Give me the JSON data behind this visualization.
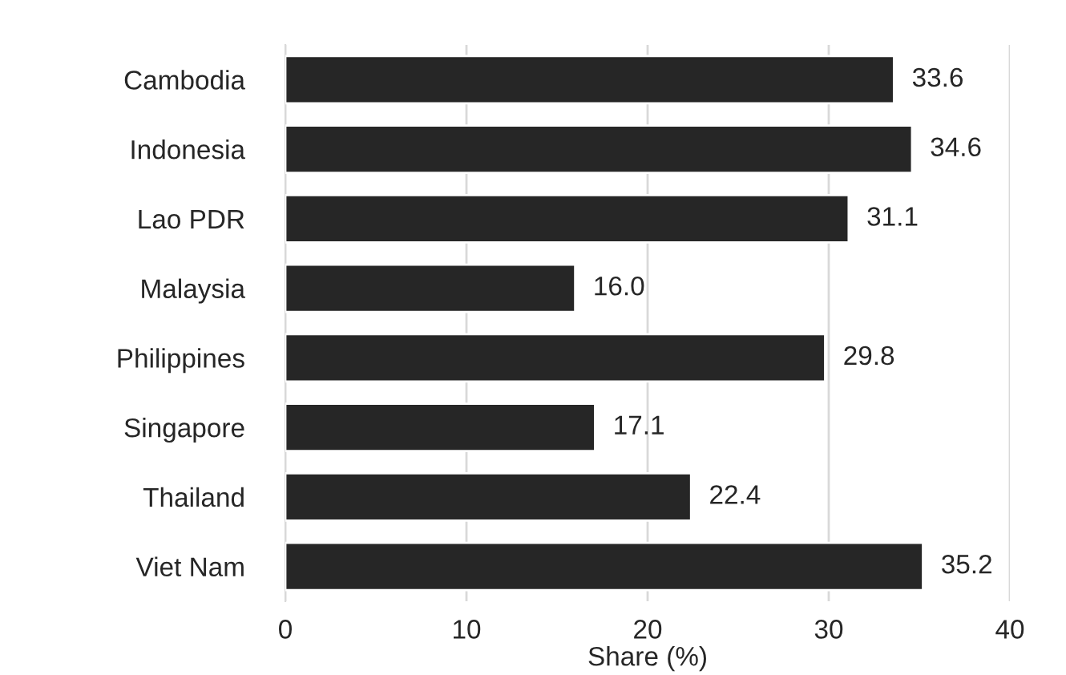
{
  "chart_data": {
    "type": "bar",
    "orientation": "horizontal",
    "xlabel": "Share (%)",
    "categories": [
      "Cambodia",
      "Indonesia",
      "Lao PDR",
      "Malaysia",
      "Philippines",
      "Singapore",
      "Thailand",
      "Viet Nam"
    ],
    "values": [
      33.6,
      34.6,
      31.1,
      16.0,
      29.8,
      17.1,
      22.4,
      35.2
    ],
    "value_labels": [
      "33.6",
      "34.6",
      "31.1",
      "16.0",
      "29.8",
      "17.1",
      "22.4",
      "35.2"
    ],
    "color": "#262626",
    "xlim": [
      0,
      40
    ],
    "xticks": [
      0,
      10,
      20,
      30,
      40
    ],
    "grid": "x",
    "legend": false
  }
}
